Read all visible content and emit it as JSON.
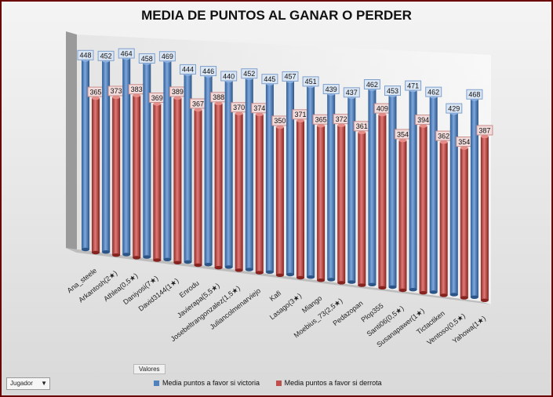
{
  "chart_data": {
    "type": "bar",
    "title": "MEDIA DE PUNTOS AL GANAR O PERDER",
    "categories": [
      "Ana_steele",
      "Arkantosh(2★)",
      "Athlea(0,5★)",
      "Daniyosi(7★)",
      "David3144(1★)",
      "Enrodu",
      "Javierapa(5,5★)",
      "Josebeltrangonzalez(1,5★)",
      "Juliancolmenarviejo",
      "Kafi",
      "Lasago(3★)",
      "Miango",
      "Moebius_73(2,5★)",
      "Pedazopan",
      "Plop355",
      "Santi06(0,5★)",
      "Susanapawer(1★)",
      "Tictactiken",
      "Ventoso(0,5★)",
      "Yahowa(1★)"
    ],
    "series": [
      {
        "name": "Media puntos a favor si victoria",
        "color": "#4f81bd",
        "values": [
          448,
          452,
          464,
          458,
          469,
          444,
          446,
          440,
          452,
          445,
          457,
          451,
          439,
          437,
          462,
          453,
          471,
          462,
          429,
          468
        ]
      },
      {
        "name": "Media puntos a favor si derrota",
        "color": "#c0504d",
        "values": [
          365,
          373,
          383,
          369,
          389,
          367,
          388,
          370,
          374,
          350,
          371,
          365,
          372,
          361,
          409,
          354,
          394,
          362,
          354,
          387
        ]
      }
    ],
    "ylim": [
      0,
      480
    ],
    "grid": false,
    "legend_placement": "bottom",
    "view": "3d-cylinders"
  },
  "ui": {
    "values_button": "Valores",
    "field_button": "Jugador",
    "dropdown_icon": "triangle-down-icon"
  }
}
